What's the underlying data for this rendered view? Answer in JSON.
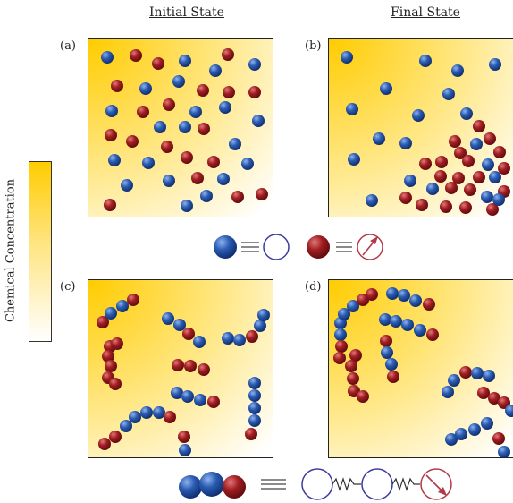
{
  "headers": {
    "initial": "Initial State",
    "final": "Final State"
  },
  "panel_labels": {
    "a": "(a)",
    "b": "(b)",
    "c": "(c)",
    "d": "(d)"
  },
  "colorbar_label": "Chemical Concentration",
  "colors": {
    "blue_particle": "#2a5bb0",
    "red_particle": "#a11d21",
    "gradient_high": "#ffcc00",
    "gradient_low": "#ffffff",
    "legend_blue_ring": "#3b3aa0",
    "legend_red_ring": "#b23a48"
  }
}
